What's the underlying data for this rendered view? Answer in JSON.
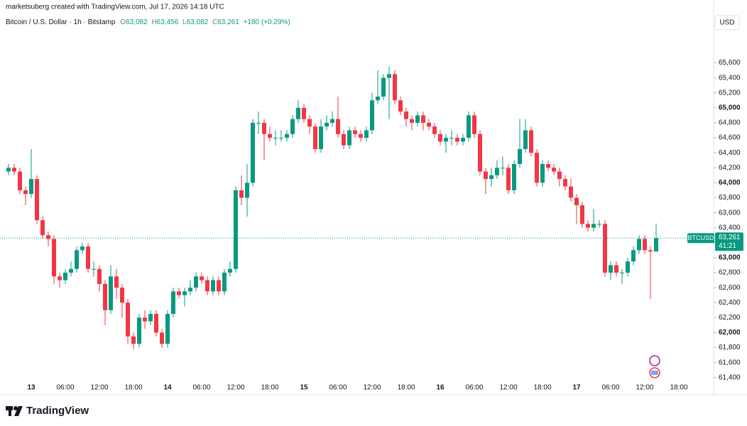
{
  "header": {
    "credit": "marketsuberg created with TradingView.com, Jul 17, 2026 14:18 UTC",
    "symbol_line": "Bitcoin / U.S. Dollar · 1h · Bitstamp",
    "ohlc": [
      {
        "key": "O",
        "value": "63,082"
      },
      {
        "key": "H",
        "value": "63,456"
      },
      {
        "key": "L",
        "value": "63,082"
      },
      {
        "key": "C",
        "value": "63,261"
      }
    ],
    "change": "+180 (+0.29%)"
  },
  "footer": {
    "brand": "TradingView"
  },
  "chart_data": {
    "type": "candlestick",
    "currency": "USD",
    "up_color": "#089981",
    "down_color": "#f23645",
    "last_price": {
      "symbol": "BTCUSD",
      "value": 63261,
      "label": "63,261",
      "countdown": "41:21"
    },
    "ylim": [
      61180,
      66060
    ],
    "yticks": [
      {
        "value": 61400,
        "label": "61,400"
      },
      {
        "value": 61600,
        "label": "61,600"
      },
      {
        "value": 61800,
        "label": "61,800"
      },
      {
        "value": 62000,
        "label": "62,000"
      },
      {
        "value": 62200,
        "label": "62,200"
      },
      {
        "value": 62400,
        "label": "62,400"
      },
      {
        "value": 62600,
        "label": "62,600"
      },
      {
        "value": 62800,
        "label": "62,800"
      },
      {
        "value": 63000,
        "label": "63,000"
      },
      {
        "value": 63200,
        "label": "63,200"
      },
      {
        "value": 63400,
        "label": "63,400"
      },
      {
        "value": 63600,
        "label": "63,600"
      },
      {
        "value": 63800,
        "label": "63,800"
      },
      {
        "value": 64000,
        "label": "64,000"
      },
      {
        "value": 64200,
        "label": "64,200"
      },
      {
        "value": 64400,
        "label": "64,400"
      },
      {
        "value": 64600,
        "label": "64,600"
      },
      {
        "value": 64800,
        "label": "64,800"
      },
      {
        "value": 65000,
        "label": "65,000"
      },
      {
        "value": 65200,
        "label": "65,200"
      },
      {
        "value": 65400,
        "label": "65,400"
      },
      {
        "value": 65600,
        "label": "65,600"
      }
    ],
    "categories": [
      null,
      null,
      null,
      null,
      "13",
      null,
      null,
      null,
      null,
      null,
      "06:00",
      null,
      null,
      null,
      null,
      null,
      "12:00",
      null,
      null,
      null,
      null,
      null,
      "18:00",
      null,
      null,
      null,
      null,
      null,
      "14",
      null,
      null,
      null,
      null,
      null,
      "06:00",
      null,
      null,
      null,
      null,
      null,
      "12:00",
      null,
      null,
      null,
      null,
      null,
      "18:00",
      null,
      null,
      null,
      null,
      null,
      "15",
      null,
      null,
      null,
      null,
      null,
      "06:00",
      null,
      null,
      null,
      null,
      null,
      "12:00",
      null,
      null,
      null,
      null,
      null,
      "18:00",
      null,
      null,
      null,
      null,
      null,
      "16",
      null,
      null,
      null,
      null,
      null,
      "06:00",
      null,
      null,
      null,
      null,
      null,
      "12:00",
      null,
      null,
      null,
      null,
      null,
      "18:00",
      null,
      null,
      null,
      null,
      null,
      "17",
      null,
      null,
      null,
      null,
      null,
      "06:00",
      null,
      null,
      null,
      null,
      null,
      "12:00",
      null,
      null,
      null,
      null,
      null,
      "18:00"
    ],
    "open": [
      64150,
      64200,
      64150,
      63900,
      63850,
      64050,
      63500,
      63300,
      63250,
      62750,
      62700,
      62800,
      62850,
      63100,
      63150,
      62850,
      62850,
      62650,
      62300,
      62750,
      62600,
      62400,
      61950,
      61850,
      62200,
      62150,
      62250,
      62000,
      61850,
      62250,
      62550,
      62500,
      62550,
      62600,
      62750,
      62700,
      62550,
      62700,
      62550,
      62800,
      62850,
      63900,
      63800,
      64000,
      64800,
      64800,
      64650,
      64600,
      64600,
      64600,
      64650,
      64850,
      65000,
      64850,
      64750,
      64450,
      64750,
      64800,
      64850,
      64650,
      64500,
      64700,
      64650,
      64600,
      64700,
      65100,
      65150,
      65400,
      65450,
      65100,
      64950,
      64850,
      64800,
      64900,
      64800,
      64750,
      64650,
      64550,
      64600,
      64600,
      64550,
      64600,
      64900,
      64650,
      64150,
      64050,
      64100,
      64200,
      64200,
      63900,
      64250,
      64450,
      64700,
      64400,
      64000,
      64250,
      64200,
      64150,
      64050,
      63950,
      63800,
      63700,
      63450,
      63400,
      63450,
      63450,
      62800,
      62900,
      62800,
      62800,
      62950,
      63100,
      63250,
      63100,
      63082,
      null,
      null,
      null,
      null
    ],
    "high": [
      64250,
      64250,
      64200,
      63950,
      64450,
      64100,
      63550,
      63350,
      63300,
      62800,
      62850,
      62950,
      63150,
      63200,
      63200,
      62950,
      62900,
      62700,
      62900,
      62850,
      62650,
      62450,
      62000,
      62250,
      62300,
      62300,
      62300,
      62050,
      62300,
      62600,
      62600,
      62600,
      62700,
      62800,
      62800,
      62750,
      62750,
      62750,
      62850,
      62950,
      63950,
      64100,
      64250,
      64850,
      64950,
      64850,
      64750,
      64700,
      64700,
      64700,
      64900,
      65100,
      65050,
      64900,
      64800,
      64850,
      64900,
      64950,
      65150,
      64700,
      64750,
      64750,
      64700,
      64750,
      65200,
      65500,
      65450,
      65550,
      65500,
      65150,
      65000,
      64900,
      64950,
      64950,
      64850,
      64800,
      64700,
      64650,
      64700,
      64650,
      64650,
      64950,
      64950,
      64700,
      64200,
      64200,
      64300,
      64350,
      64250,
      64300,
      64850,
      64850,
      64750,
      64450,
      64300,
      64300,
      64250,
      64200,
      64100,
      64050,
      63850,
      63750,
      63500,
      63650,
      63500,
      63500,
      62950,
      62950,
      62850,
      63000,
      63150,
      63300,
      63300,
      63150,
      63456,
      null,
      null,
      null,
      null
    ],
    "low": [
      64100,
      64100,
      63850,
      63700,
      63800,
      63450,
      63250,
      63150,
      62650,
      62600,
      62650,
      62750,
      62800,
      63050,
      62800,
      62750,
      62550,
      62100,
      62250,
      62450,
      62200,
      61850,
      61780,
      61800,
      62050,
      62100,
      61950,
      61800,
      61800,
      62200,
      62450,
      62350,
      62500,
      62550,
      62650,
      62500,
      62500,
      62500,
      62500,
      62750,
      62800,
      63700,
      63550,
      63950,
      64650,
      64300,
      64550,
      64500,
      64550,
      64550,
      64600,
      64800,
      64800,
      64650,
      64400,
      64400,
      64700,
      64750,
      64600,
      64450,
      64450,
      64600,
      64550,
      64550,
      64650,
      65050,
      65100,
      64850,
      65050,
      64900,
      64750,
      64700,
      64750,
      64700,
      64700,
      64600,
      64500,
      64400,
      64500,
      64500,
      64500,
      64550,
      64600,
      64100,
      63850,
      63950,
      64050,
      64100,
      63850,
      63850,
      64200,
      64400,
      64350,
      63950,
      63950,
      64150,
      64100,
      63950,
      63900,
      63750,
      63450,
      63400,
      63350,
      63350,
      63400,
      62750,
      62700,
      62750,
      62650,
      62750,
      62900,
      63050,
      63050,
      62450,
      63082,
      null,
      null,
      null,
      null
    ],
    "close": [
      64200,
      64150,
      63900,
      63850,
      64050,
      63500,
      63300,
      63250,
      62750,
      62700,
      62800,
      62850,
      63100,
      63150,
      62850,
      62850,
      62650,
      62300,
      62750,
      62600,
      62400,
      61950,
      61850,
      62200,
      62150,
      62250,
      62000,
      61850,
      62250,
      62550,
      62500,
      62550,
      62600,
      62750,
      62700,
      62550,
      62700,
      62550,
      62800,
      62850,
      63900,
      63800,
      64000,
      64800,
      64800,
      64650,
      64600,
      64600,
      64600,
      64650,
      64850,
      65000,
      64850,
      64750,
      64450,
      64750,
      64800,
      64850,
      64650,
      64500,
      64700,
      64650,
      64600,
      64700,
      65100,
      65150,
      65400,
      65450,
      65100,
      64950,
      64850,
      64800,
      64900,
      64800,
      64750,
      64650,
      64550,
      64600,
      64600,
      64550,
      64600,
      64900,
      64650,
      64150,
      64050,
      64100,
      64200,
      64200,
      63900,
      64250,
      64450,
      64700,
      64400,
      64000,
      64250,
      64200,
      64150,
      64050,
      63950,
      63800,
      63700,
      63450,
      63400,
      63450,
      63450,
      62800,
      62900,
      62800,
      62800,
      62950,
      63100,
      63250,
      63100,
      63082,
      63261,
      null,
      null,
      null,
      null
    ]
  }
}
